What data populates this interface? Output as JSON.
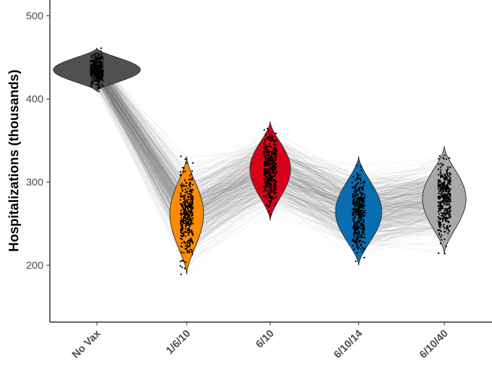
{
  "chart_data": {
    "type": "violin",
    "title": "",
    "xlabel": "",
    "ylabel": "Hospitalizations (thousands)",
    "ylim": [
      140,
      520
    ],
    "yticks": [
      200,
      300,
      400,
      500
    ],
    "ytick_labels": [
      "200",
      "300",
      "400",
      "500"
    ],
    "grid": false,
    "legend": "none",
    "paired_lines": true,
    "categories": [
      "No Vax",
      "1/6/10",
      "6/10",
      "6/10/14",
      "6/10/40"
    ],
    "groups": [
      {
        "category": "No Vax",
        "color": "#505050",
        "median": 435,
        "min": 409,
        "max": 461
      },
      {
        "category": "1/6/10",
        "color": "#ff8c00",
        "median": 262,
        "min": 189,
        "max": 331
      },
      {
        "category": "6/10",
        "color": "#d7001b",
        "median": 316,
        "min": 254,
        "max": 373
      },
      {
        "category": "6/10/14",
        "color": "#0a6db0",
        "median": 264,
        "min": 200,
        "max": 331
      },
      {
        "category": "6/10/40",
        "color": "#a9a9a9",
        "median": 280,
        "min": 214,
        "max": 343
      }
    ]
  }
}
